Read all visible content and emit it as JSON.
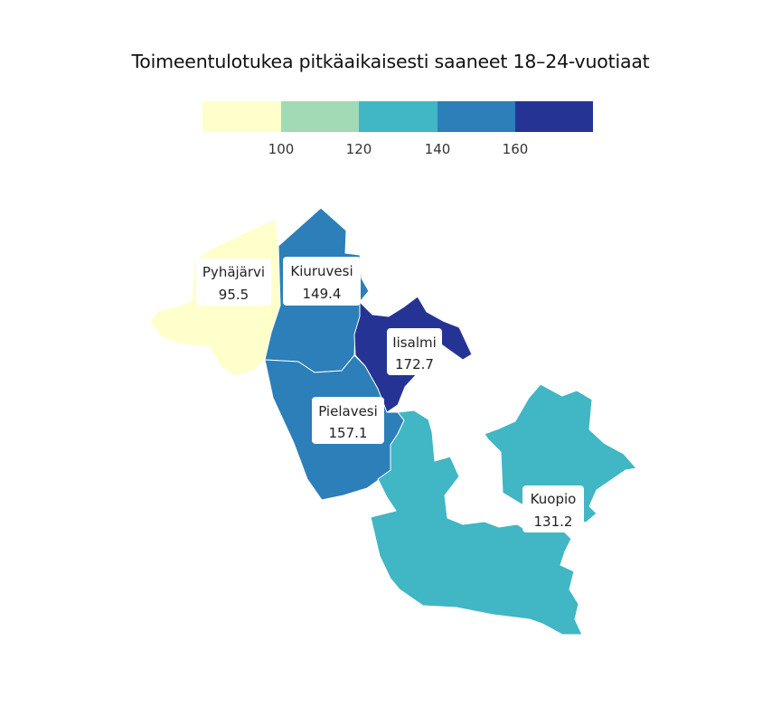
{
  "chart_data": {
    "type": "choropleth",
    "title": "Toimeentulotukea pitkäaikaisesti saaneet 18–24-vuotiaat",
    "legend": {
      "ticks": [
        "100",
        "120",
        "140",
        "160"
      ],
      "bins": [
        {
          "min": null,
          "max": 100,
          "color": "#ffffcc"
        },
        {
          "min": 100,
          "max": 120,
          "color": "#a1dab4"
        },
        {
          "min": 120,
          "max": 140,
          "color": "#41b6c4"
        },
        {
          "min": 140,
          "max": 160,
          "color": "#2c7fb8"
        },
        {
          "min": 160,
          "max": null,
          "color": "#253494"
        }
      ]
    },
    "regions": [
      {
        "id": "pyhajarvi",
        "name": "Pyhäjärvi",
        "value": 95.5,
        "value_label": "95.5"
      },
      {
        "id": "kiuruvesi",
        "name": "Kiuruvesi",
        "value": 149.4,
        "value_label": "149.4"
      },
      {
        "id": "iisalmi",
        "name": "Iisalmi",
        "value": 172.7,
        "value_label": "172.7"
      },
      {
        "id": "pielavesi",
        "name": "Pielavesi",
        "value": 157.1,
        "value_label": "157.1"
      },
      {
        "id": "kuopio",
        "name": "Kuopio",
        "value": 131.2,
        "value_label": "131.2"
      }
    ]
  }
}
